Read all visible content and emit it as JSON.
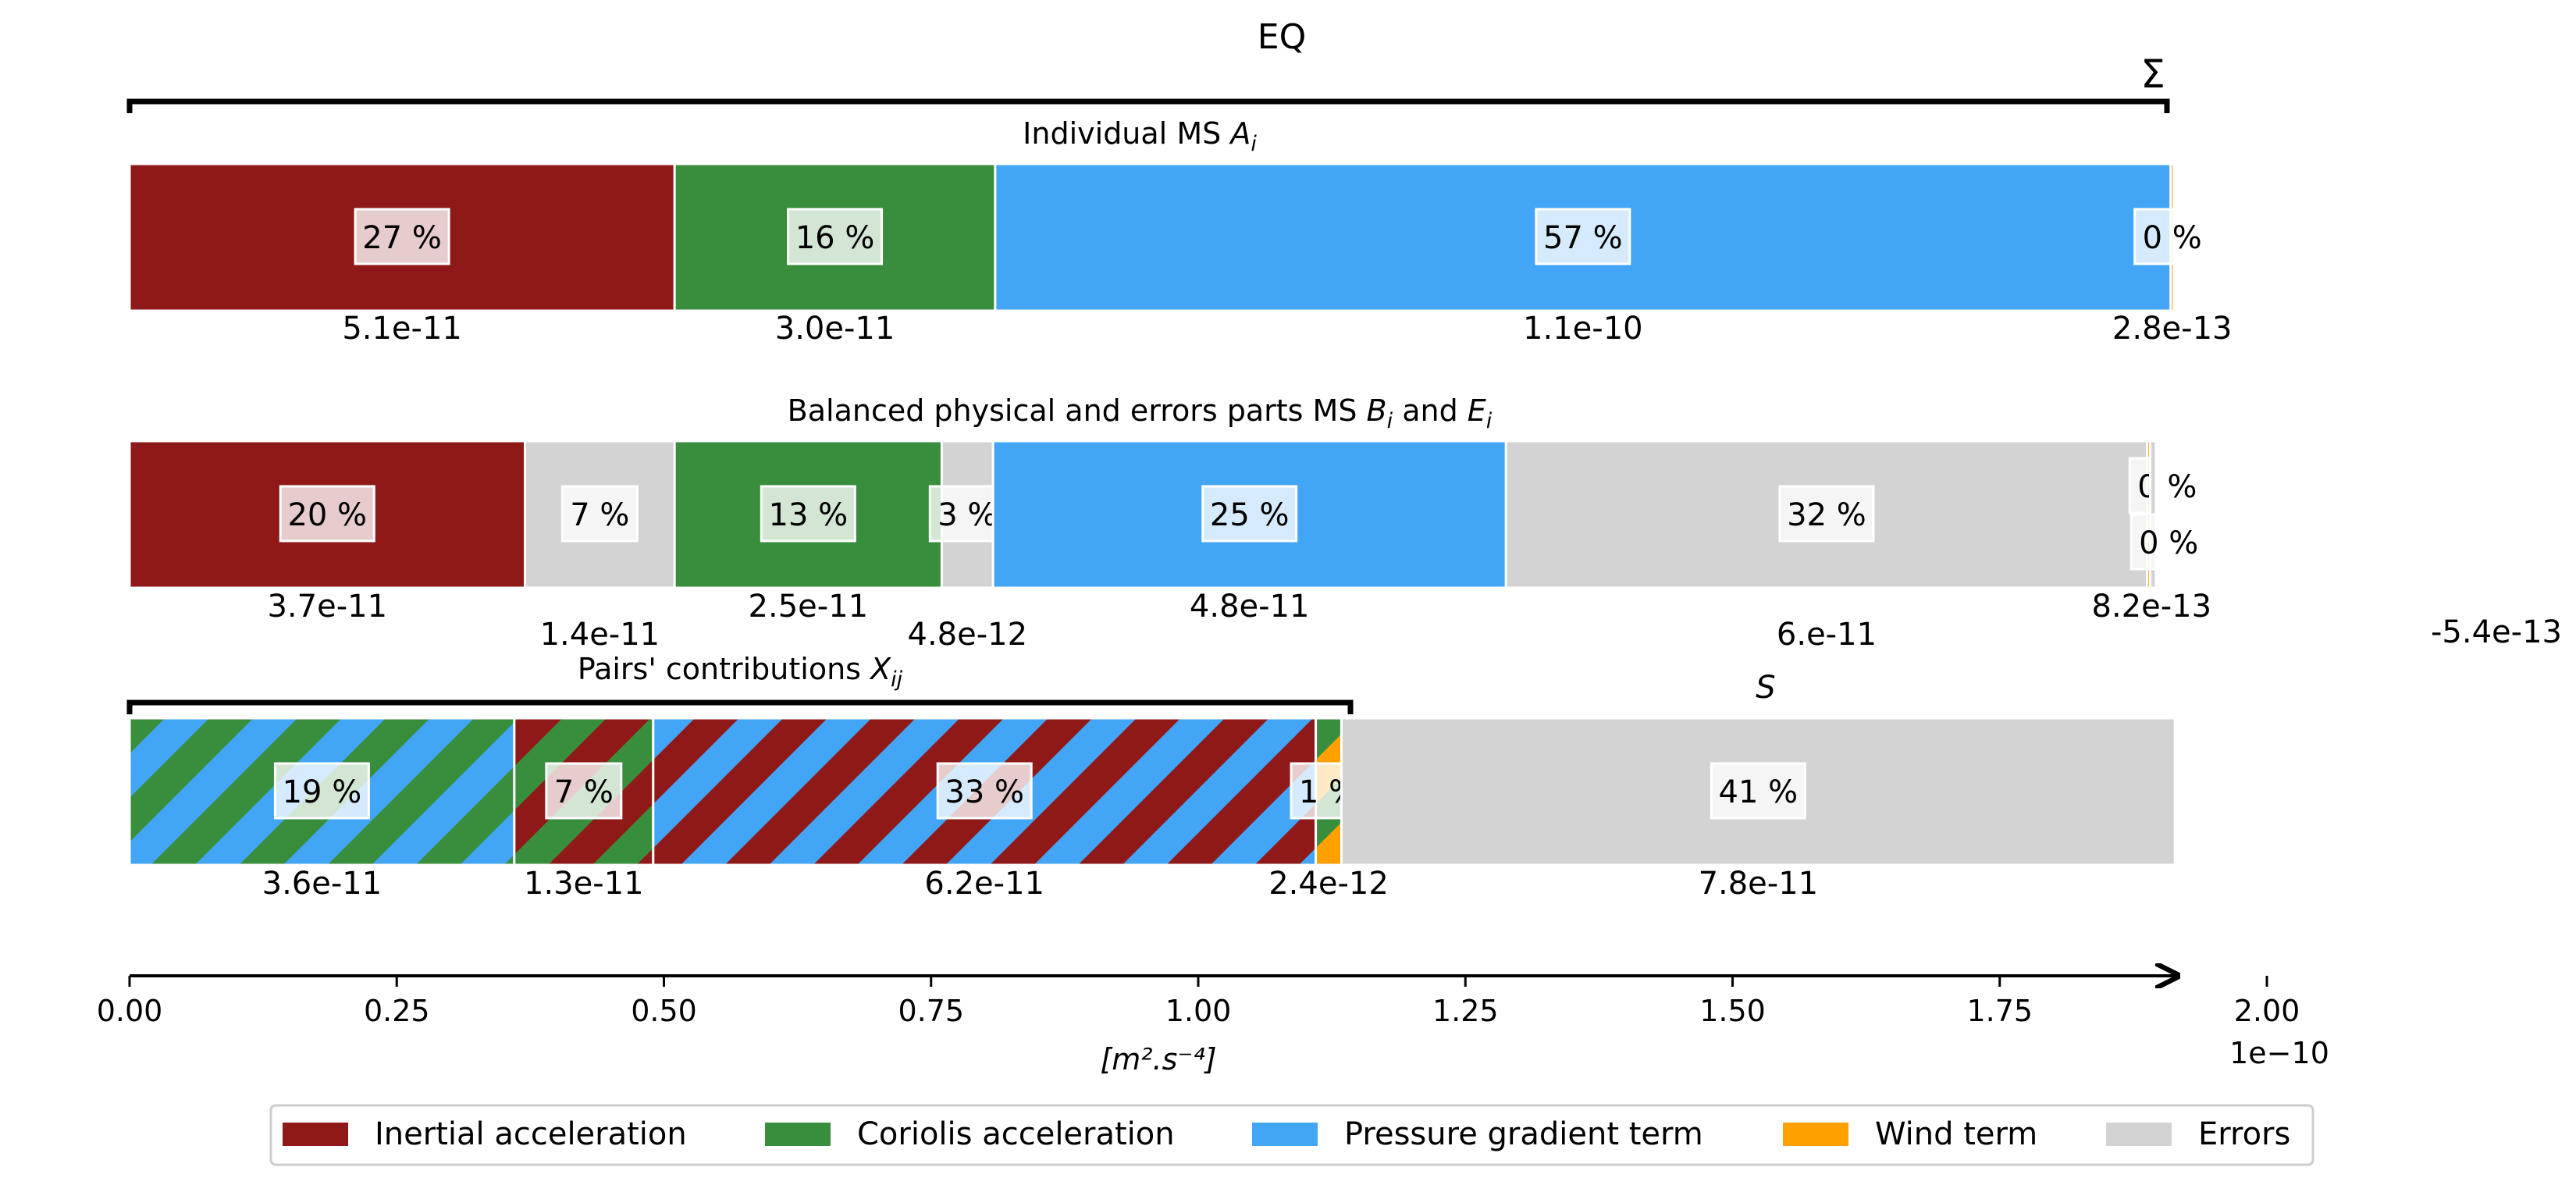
{
  "chart_data": {
    "type": "bar",
    "orientation": "horizontal-stacked",
    "title": "EQ",
    "bracket_label": "Σ",
    "xlabel": "[m².s⁻⁴]",
    "x_scale_label": "1e−10",
    "x_multiplier": 1e-10,
    "xlim": [
      0,
      2.0
    ],
    "xticks": [
      "0.00",
      "0.25",
      "0.50",
      "0.75",
      "1.00",
      "1.25",
      "1.50",
      "1.75",
      "2.00"
    ],
    "xtick_values": [
      0,
      0.25,
      0.5,
      0.75,
      1.0,
      1.25,
      1.5,
      1.75,
      2.0
    ],
    "colors": {
      "inertial": "#8f1919",
      "coriolis": "#388e3c",
      "pressure": "#42a5f5",
      "wind": "#ffa000",
      "errors": "#d3d3d3"
    },
    "rows": [
      {
        "title_prefix": "Individual MS ",
        "title_var": "A",
        "title_sub": "i",
        "segments": [
          {
            "term": "inertial",
            "value": 5.1e-11,
            "value_label": "5.1e-11",
            "percent_label": "27 %"
          },
          {
            "term": "coriolis",
            "value": 3e-11,
            "value_label": "3.0e-11",
            "percent_label": "16 %"
          },
          {
            "term": "pressure",
            "value": 1.1e-10,
            "value_label": "1.1e-10",
            "percent_label": "57 %"
          },
          {
            "term": "wind",
            "value": 2.8e-13,
            "value_label": "2.8e-13",
            "percent_label": "0 %"
          }
        ]
      },
      {
        "title_prefix": "Balanced physical and errors parts MS ",
        "title_var": "B",
        "title_sub": "i",
        "title_mid": " and ",
        "title_var2": "E",
        "title_sub2": "i",
        "segments": [
          {
            "term": "inertial",
            "value": 3.7e-11,
            "value_label": "3.7e-11",
            "percent_label": "20 %"
          },
          {
            "term": "errors",
            "value": 1.4e-11,
            "value_label": "1.4e-11",
            "percent_label": "7 %"
          },
          {
            "term": "coriolis",
            "value": 2.5e-11,
            "value_label": "2.5e-11",
            "percent_label": "13 %"
          },
          {
            "term": "errors",
            "value": 4.8e-12,
            "value_label": "4.8e-12",
            "percent_label": "3 %"
          },
          {
            "term": "pressure",
            "value": 4.8e-11,
            "value_label": "4.8e-11",
            "percent_label": "25 %"
          },
          {
            "term": "errors",
            "value": 6e-11,
            "value_label": "6.e-11",
            "percent_label": "32 %"
          },
          {
            "term": "wind",
            "value": 8.2e-13,
            "value_label": "8.2e-13",
            "percent_label": "0 %"
          },
          {
            "term": "errors",
            "value": -5.4e-13,
            "value_label": "-5.4e-13",
            "percent_label": "0 %"
          }
        ]
      },
      {
        "title_prefix": "Pairs' contributions ",
        "title_var": "X",
        "title_sub": "ij",
        "s_label": "S",
        "segments": [
          {
            "pair": [
              "pressure",
              "coriolis"
            ],
            "value": 3.6e-11,
            "value_label": "3.6e-11",
            "percent_label": "19 %"
          },
          {
            "pair": [
              "inertial",
              "coriolis"
            ],
            "value": 1.3e-11,
            "value_label": "1.3e-11",
            "percent_label": "7 %"
          },
          {
            "pair": [
              "inertial",
              "pressure"
            ],
            "value": 6.2e-11,
            "value_label": "6.2e-11",
            "percent_label": "33 %"
          },
          {
            "pair": [
              "coriolis",
              "wind"
            ],
            "value": 2.4e-12,
            "value_label": "2.4e-12",
            "percent_label": "1 %"
          },
          {
            "term": "errors",
            "value": 7.8e-11,
            "value_label": "7.8e-11",
            "percent_label": "41 %"
          }
        ]
      }
    ],
    "legend": [
      {
        "term": "inertial",
        "label": "Inertial acceleration"
      },
      {
        "term": "coriolis",
        "label": "Coriolis acceleration"
      },
      {
        "term": "pressure",
        "label": "Pressure gradient term"
      },
      {
        "term": "wind",
        "label": "Wind term"
      },
      {
        "term": "errors",
        "label": "Errors"
      }
    ],
    "legend_position": "bottom-center"
  }
}
